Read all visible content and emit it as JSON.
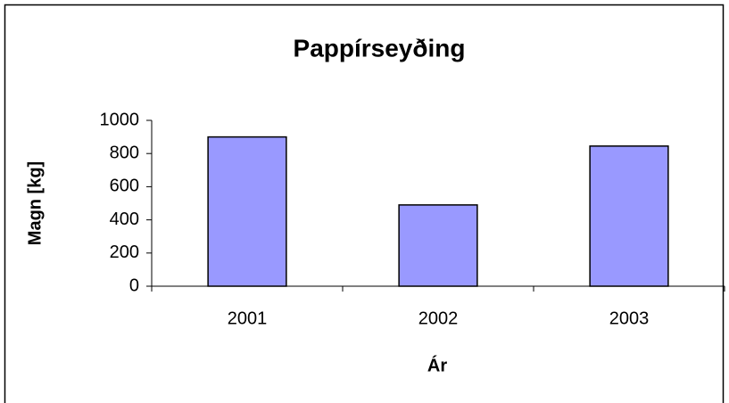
{
  "chart_data": {
    "type": "bar",
    "title": "Pappírseyðing",
    "x_label": "Ár",
    "y_label": "Magn [kg]",
    "categories": [
      "2001",
      "2002",
      "2003"
    ],
    "values": [
      900,
      490,
      845
    ],
    "color": "#9999ff",
    "ylim": [
      0,
      1000
    ],
    "yticks": [
      0,
      200,
      400,
      600,
      800,
      1000
    ],
    "grid": false
  }
}
